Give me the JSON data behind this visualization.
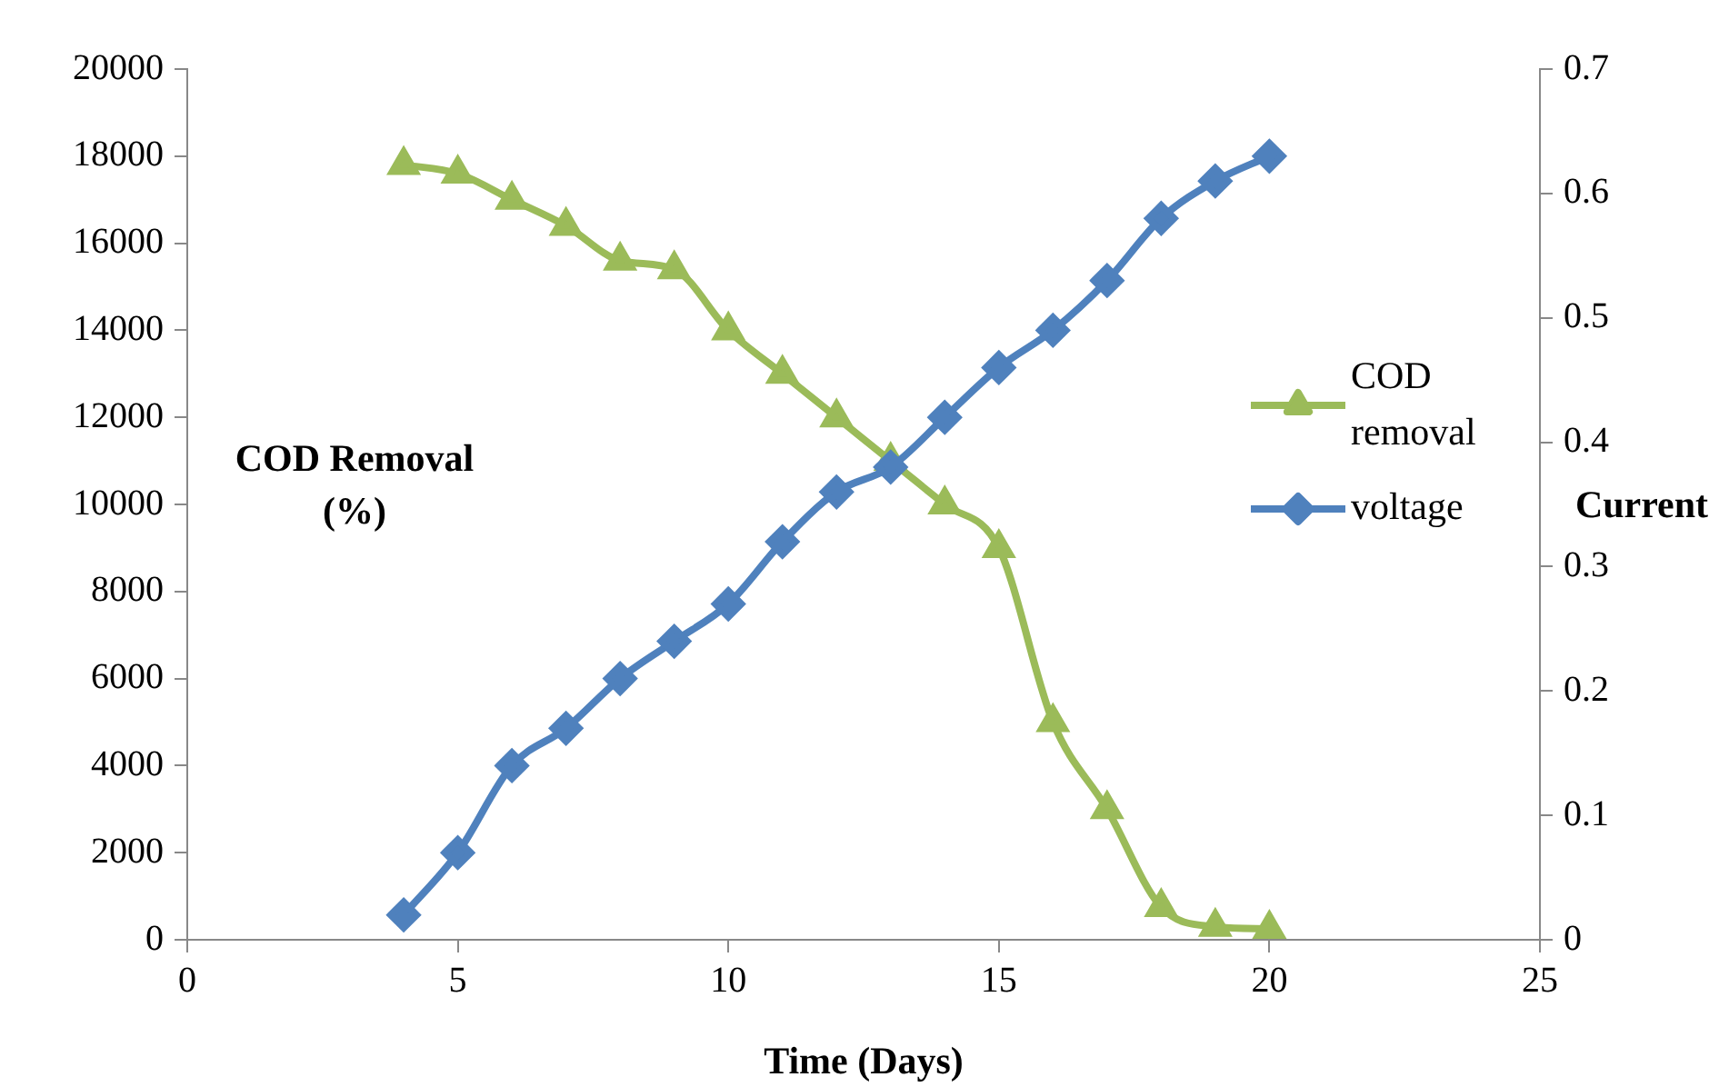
{
  "chart_data": {
    "type": "line",
    "xlabel": "Time (Days)",
    "ylabel": "COD Removal (%)",
    "y2label": "Current",
    "x": [
      4,
      5,
      6,
      7,
      8,
      9,
      10,
      11,
      12,
      13,
      14,
      15,
      16,
      17,
      18,
      19,
      20
    ],
    "xlim": [
      0,
      25
    ],
    "xticks": [
      0,
      5,
      10,
      15,
      20,
      25
    ],
    "ylim": [
      0,
      20000
    ],
    "yticks": [
      0,
      2000,
      4000,
      6000,
      8000,
      10000,
      12000,
      14000,
      16000,
      18000,
      20000
    ],
    "y2lim": [
      0,
      0.7
    ],
    "y2ticks": [
      0,
      0.1,
      0.2,
      0.3,
      0.4,
      0.5,
      0.6,
      0.7
    ],
    "grid": false,
    "legend": "right",
    "line_style": "solid",
    "series": [
      {
        "name": "COD removal",
        "color": "#9bbb59",
        "marker": "triangle",
        "values": [
          17800,
          17600,
          17000,
          16400,
          15600,
          15400,
          14000,
          13000,
          12000,
          11000,
          10000,
          9000,
          5000,
          3000,
          750,
          300,
          250
        ]
      },
      {
        "name": "voltage",
        "color": "#4f81bd",
        "marker": "diamond",
        "axis": "y2",
        "values": [
          0.02,
          0.07,
          0.14,
          0.17,
          0.21,
          0.24,
          0.27,
          0.32,
          0.36,
          0.38,
          0.42,
          0.46,
          0.49,
          0.53,
          0.58,
          0.61,
          0.63
        ]
      }
    ]
  }
}
